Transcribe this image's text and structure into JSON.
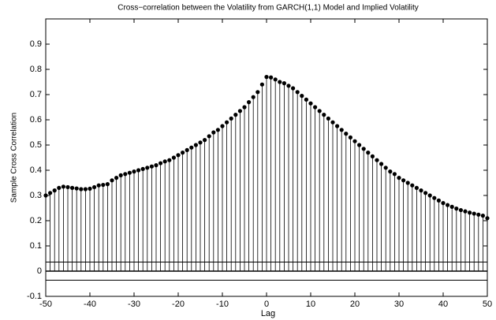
{
  "chart_data": {
    "type": "stem",
    "title": "Cross−correlation between the Volatility from GARCH(1,1) Model and Implied Volatility",
    "x_label": "Lag",
    "y_label": "Sample Cross Correlation",
    "x": [
      -50,
      -49,
      -48,
      -47,
      -46,
      -45,
      -44,
      -43,
      -42,
      -41,
      -40,
      -39,
      -38,
      -37,
      -36,
      -35,
      -34,
      -33,
      -32,
      -31,
      -30,
      -29,
      -28,
      -27,
      -26,
      -25,
      -24,
      -23,
      -22,
      -21,
      -20,
      -19,
      -18,
      -17,
      -16,
      -15,
      -14,
      -13,
      -12,
      -11,
      -10,
      -9,
      -8,
      -7,
      -6,
      -5,
      -4,
      -3,
      -2,
      -1,
      0,
      1,
      2,
      3,
      4,
      5,
      6,
      7,
      8,
      9,
      10,
      11,
      12,
      13,
      14,
      15,
      16,
      17,
      18,
      19,
      20,
      21,
      22,
      23,
      24,
      25,
      26,
      27,
      28,
      29,
      30,
      31,
      32,
      33,
      34,
      35,
      36,
      37,
      38,
      39,
      40,
      41,
      42,
      43,
      44,
      45,
      46,
      47,
      48,
      49,
      50
    ],
    "values": [
      0.3,
      0.31,
      0.32,
      0.33,
      0.335,
      0.333,
      0.33,
      0.328,
      0.325,
      0.325,
      0.327,
      0.333,
      0.34,
      0.342,
      0.345,
      0.36,
      0.37,
      0.38,
      0.385,
      0.39,
      0.395,
      0.4,
      0.405,
      0.41,
      0.415,
      0.42,
      0.428,
      0.435,
      0.44,
      0.45,
      0.46,
      0.47,
      0.48,
      0.49,
      0.5,
      0.51,
      0.52,
      0.535,
      0.55,
      0.56,
      0.575,
      0.59,
      0.605,
      0.62,
      0.635,
      0.65,
      0.67,
      0.69,
      0.71,
      0.74,
      0.77,
      0.768,
      0.76,
      0.75,
      0.745,
      0.735,
      0.725,
      0.71,
      0.695,
      0.68,
      0.665,
      0.65,
      0.635,
      0.62,
      0.605,
      0.59,
      0.575,
      0.56,
      0.545,
      0.53,
      0.515,
      0.5,
      0.485,
      0.47,
      0.455,
      0.44,
      0.425,
      0.41,
      0.395,
      0.385,
      0.37,
      0.36,
      0.35,
      0.34,
      0.33,
      0.32,
      0.31,
      0.3,
      0.29,
      0.28,
      0.27,
      0.262,
      0.255,
      0.248,
      0.242,
      0.237,
      0.232,
      0.228,
      0.224,
      0.22,
      0.21
    ],
    "color": "#000000",
    "confidence_bounds": [
      0.036,
      -0.036
    ],
    "xlim": [
      -50,
      50
    ],
    "ylim": [
      -0.1,
      1
    ],
    "xticks": [
      -50,
      -40,
      -30,
      -20,
      -10,
      0,
      10,
      20,
      30,
      40,
      50
    ],
    "yticks": [
      -0.1,
      0,
      0.1,
      0.2,
      0.3,
      0.4,
      0.5,
      0.6,
      0.7,
      0.8,
      0.9
    ]
  }
}
